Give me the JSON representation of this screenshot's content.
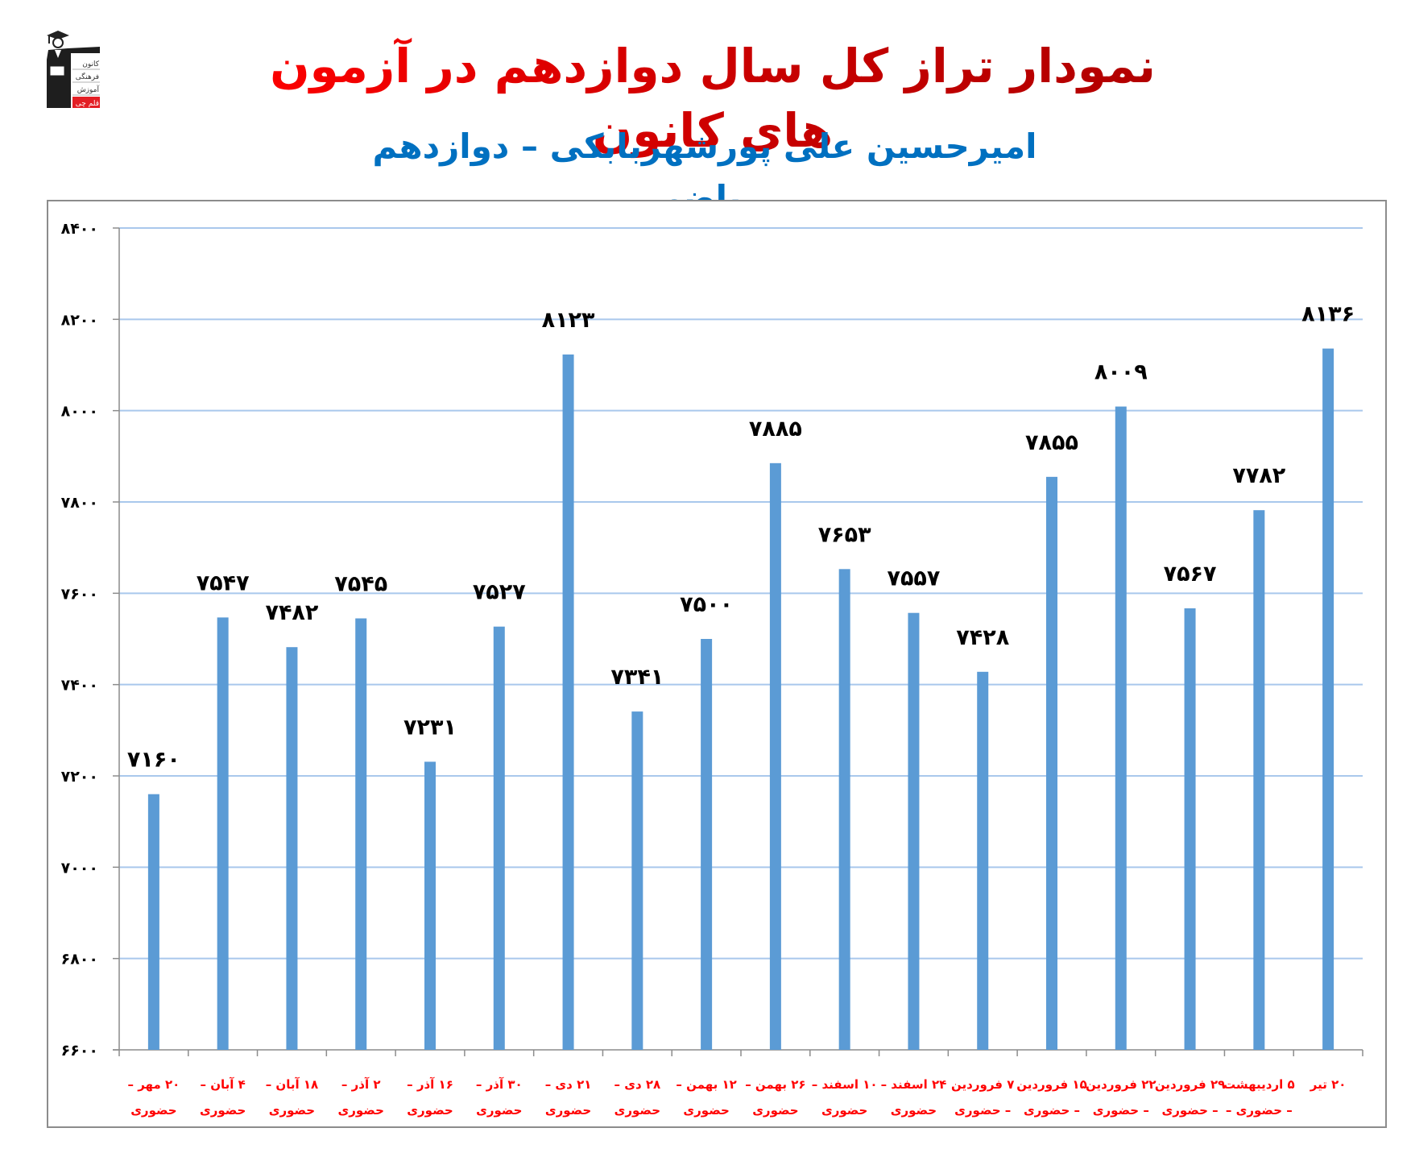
{
  "header": {
    "title": "نمودار تراز کل سال دوازدهم در آزمون های کانون",
    "subtitle": "امیرحسین علی پورشهربابکی – دوازدهم ریاضی",
    "logo": {
      "icon": "graduate-logo-icon",
      "lines": [
        "کانون",
        "فرهنگی",
        "آموزش",
        "قلم چی"
      ]
    }
  },
  "colors": {
    "bar": "#5B9BD5",
    "gridline": "#A9C8EC",
    "axis": "#8C8C8C",
    "title_red": "#FF0000",
    "title_dark_red": "#C00000",
    "subtitle_blue": "#0070C0",
    "xlabel_red": "#FF0000",
    "value_label": "#000000"
  },
  "chart_data": {
    "type": "bar",
    "title": "نمودار تراز کل سال دوازدهم در آزمون های کانون",
    "subtitle": "امیرحسین علی پورشهربابکی – دوازدهم ریاضی",
    "xlabel": "",
    "ylabel": "",
    "ylim": [
      6600,
      8400
    ],
    "yticks": [
      6600,
      6800,
      7000,
      7200,
      7400,
      7600,
      7800,
      8000,
      8200,
      8400
    ],
    "ytick_labels": [
      "۶۶۰۰",
      "۶۸۰۰",
      "۷۰۰۰",
      "۷۲۰۰",
      "۷۴۰۰",
      "۷۶۰۰",
      "۷۸۰۰",
      "۸۰۰۰",
      "۸۲۰۰",
      "۸۴۰۰"
    ],
    "grid": true,
    "legend": "none",
    "categories": [
      {
        "line1": "۲۰ مهر –",
        "line2": "حضوری"
      },
      {
        "line1": "۴ آبان –",
        "line2": "حضوری"
      },
      {
        "line1": "۱۸ آبان –",
        "line2": "حضوری"
      },
      {
        "line1": "۲ آذر –",
        "line2": "حضوری"
      },
      {
        "line1": "۱۶ آذر –",
        "line2": "حضوری"
      },
      {
        "line1": "۳۰ آذر –",
        "line2": "حضوری"
      },
      {
        "line1": "۲۱ دی –",
        "line2": "حضوری"
      },
      {
        "line1": "۲۸ دی –",
        "line2": "حضوری"
      },
      {
        "line1": "۱۲ بهمن –",
        "line2": "حضوری"
      },
      {
        "line1": "۲۶ بهمن –",
        "line2": "حضوری"
      },
      {
        "line1": "۱۰ اسفند –",
        "line2": "حضوری"
      },
      {
        "line1": "۲۴ اسفند –",
        "line2": "حضوری"
      },
      {
        "line1": "۷ فروردین",
        "line2": "– حضوری"
      },
      {
        "line1": "۱۵ فروردین",
        "line2": "– حضوری"
      },
      {
        "line1": "۲۲ فروردین",
        "line2": "– حضوری"
      },
      {
        "line1": "۲۹ فروردین",
        "line2": "– حضوری"
      },
      {
        "line1": "۵ اردیبهشت",
        "line2": "– حضوری –"
      },
      {
        "line1": "۲۰ تیر",
        "line2": ""
      }
    ],
    "values": [
      7160,
      7547,
      7482,
      7545,
      7231,
      7527,
      8123,
      7341,
      7500,
      7885,
      7653,
      7557,
      7428,
      7855,
      8009,
      7567,
      7782,
      8136
    ],
    "value_labels": [
      "۷۱۶۰",
      "۷۵۴۷",
      "۷۴۸۲",
      "۷۵۴۵",
      "۷۲۳۱",
      "۷۵۲۷",
      "۸۱۲۳",
      "۷۳۴۱",
      "۷۵۰۰",
      "۷۸۸۵",
      "۷۶۵۳",
      "۷۵۵۷",
      "۷۴۲۸",
      "۷۸۵۵",
      "۸۰۰۹",
      "۷۵۶۷",
      "۷۷۸۲",
      "۸۱۳۶"
    ]
  }
}
